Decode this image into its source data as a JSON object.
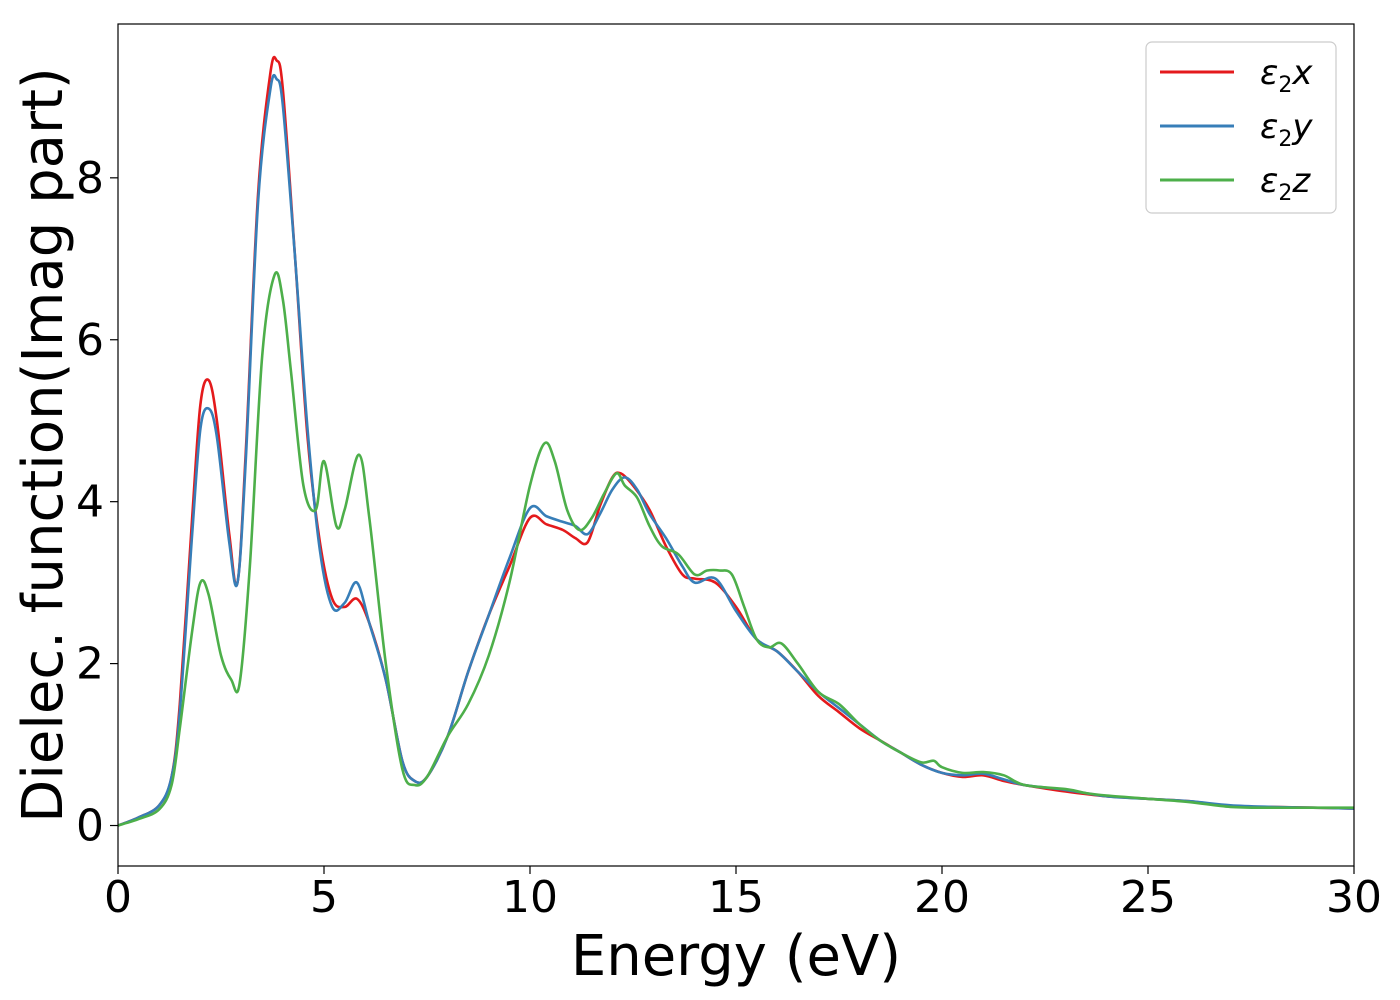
{
  "chart_data": {
    "type": "line",
    "title": "",
    "xlabel": "Energy (eV)",
    "ylabel": "Dielec. function(Imag part)",
    "xlim": [
      0,
      30
    ],
    "ylim": [
      -0.5,
      9.9
    ],
    "xticks": [
      0,
      5,
      10,
      15,
      20,
      25,
      30
    ],
    "yticks": [
      0,
      2,
      4,
      6,
      8
    ],
    "xtick_labels": [
      "0",
      "5",
      "10",
      "15",
      "20",
      "25",
      "30"
    ],
    "ytick_labels": [
      "0",
      "2",
      "4",
      "6",
      "8"
    ],
    "grid": false,
    "legend_position": "top-right",
    "series": [
      {
        "name": "ε₂x",
        "legend_main": "ε",
        "legend_sub": "2",
        "legend_var": "x",
        "color": "#e41a1c",
        "x": [
          0,
          0.5,
          1.0,
          1.3,
          1.5,
          1.8,
          2.0,
          2.2,
          2.4,
          2.7,
          2.9,
          3.1,
          3.4,
          3.7,
          3.85,
          4.0,
          4.3,
          4.6,
          4.9,
          5.2,
          5.5,
          5.8,
          6.1,
          6.5,
          6.9,
          7.2,
          7.5,
          8.0,
          8.5,
          9.0,
          9.5,
          10.0,
          10.4,
          10.8,
          11.1,
          11.4,
          11.7,
          12.0,
          12.2,
          12.5,
          12.9,
          13.3,
          13.7,
          14.0,
          14.5,
          15.0,
          15.5,
          16.0,
          16.5,
          17.0,
          17.5,
          18.0,
          18.5,
          19.0,
          19.5,
          20.0,
          20.5,
          21.0,
          21.5,
          22.0,
          23.0,
          24.0,
          25.0,
          26.0,
          27.0,
          28.0,
          29.0,
          30.0
        ],
        "y": [
          0.0,
          0.1,
          0.25,
          0.6,
          1.5,
          3.8,
          5.2,
          5.5,
          5.0,
          3.6,
          3.0,
          4.6,
          7.8,
          9.3,
          9.45,
          9.1,
          7.0,
          4.8,
          3.5,
          2.8,
          2.7,
          2.8,
          2.5,
          1.8,
          0.8,
          0.55,
          0.6,
          1.1,
          1.9,
          2.6,
          3.2,
          3.8,
          3.72,
          3.65,
          3.55,
          3.5,
          3.95,
          4.3,
          4.35,
          4.2,
          3.9,
          3.45,
          3.1,
          3.05,
          3.0,
          2.7,
          2.3,
          2.15,
          1.9,
          1.6,
          1.4,
          1.2,
          1.05,
          0.9,
          0.75,
          0.65,
          0.6,
          0.62,
          0.55,
          0.5,
          0.42,
          0.36,
          0.33,
          0.3,
          0.24,
          0.23,
          0.22,
          0.21
        ]
      },
      {
        "name": "ε₂y",
        "legend_main": "ε",
        "legend_sub": "2",
        "legend_var": "y",
        "color": "#377eb8",
        "x": [
          0,
          0.5,
          1.0,
          1.3,
          1.5,
          1.8,
          2.0,
          2.2,
          2.4,
          2.7,
          2.9,
          3.1,
          3.4,
          3.7,
          3.85,
          4.0,
          4.3,
          4.6,
          4.9,
          5.2,
          5.5,
          5.8,
          6.1,
          6.5,
          6.9,
          7.2,
          7.5,
          8.0,
          8.5,
          9.0,
          9.5,
          10.0,
          10.4,
          10.8,
          11.1,
          11.4,
          11.7,
          12.0,
          12.3,
          12.6,
          12.9,
          13.3,
          13.7,
          14.0,
          14.5,
          15.0,
          15.5,
          16.0,
          16.5,
          17.0,
          17.5,
          18.0,
          18.5,
          19.0,
          19.5,
          20.0,
          20.5,
          21.0,
          21.5,
          22.0,
          23.0,
          24.0,
          25.0,
          26.0,
          27.0,
          28.0,
          29.0,
          30.0
        ],
        "y": [
          0.0,
          0.1,
          0.25,
          0.6,
          1.4,
          3.6,
          4.9,
          5.15,
          4.8,
          3.5,
          3.0,
          4.5,
          7.7,
          9.1,
          9.22,
          8.9,
          7.0,
          4.9,
          3.4,
          2.7,
          2.75,
          3.0,
          2.5,
          1.8,
          0.8,
          0.55,
          0.6,
          1.1,
          1.9,
          2.6,
          3.3,
          3.92,
          3.82,
          3.75,
          3.7,
          3.6,
          3.85,
          4.15,
          4.3,
          4.15,
          3.85,
          3.55,
          3.2,
          3.0,
          3.05,
          2.65,
          2.3,
          2.15,
          1.9,
          1.65,
          1.45,
          1.25,
          1.05,
          0.9,
          0.75,
          0.65,
          0.62,
          0.64,
          0.57,
          0.5,
          0.44,
          0.36,
          0.33,
          0.3,
          0.25,
          0.23,
          0.22,
          0.21
        ]
      },
      {
        "name": "ε₂z",
        "legend_main": "ε",
        "legend_sub": "2",
        "legend_var": "z",
        "color": "#4daf4a",
        "x": [
          0,
          0.5,
          1.0,
          1.3,
          1.5,
          1.8,
          2.0,
          2.2,
          2.5,
          2.75,
          2.95,
          3.2,
          3.5,
          3.8,
          4.0,
          4.2,
          4.5,
          4.8,
          5.0,
          5.3,
          5.5,
          5.85,
          6.1,
          6.5,
          6.9,
          7.2,
          7.5,
          8.0,
          8.5,
          9.0,
          9.5,
          10.0,
          10.35,
          10.6,
          10.9,
          11.2,
          11.5,
          11.8,
          12.1,
          12.3,
          12.6,
          12.9,
          13.2,
          13.6,
          14.0,
          14.3,
          14.6,
          14.9,
          15.2,
          15.5,
          15.8,
          16.1,
          16.5,
          17.0,
          17.5,
          18.0,
          18.5,
          19.0,
          19.5,
          19.8,
          20.0,
          20.5,
          21.0,
          21.5,
          22.0,
          23.0,
          23.5,
          24.0,
          25.0,
          26.0,
          27.0,
          28.0,
          29.0,
          30.0
        ],
        "y": [
          0.0,
          0.08,
          0.2,
          0.5,
          1.2,
          2.4,
          3.0,
          2.85,
          2.1,
          1.8,
          1.75,
          3.2,
          5.8,
          6.8,
          6.5,
          5.6,
          4.2,
          3.9,
          4.5,
          3.7,
          3.9,
          4.58,
          3.8,
          2.0,
          0.7,
          0.5,
          0.6,
          1.1,
          1.5,
          2.1,
          3.0,
          4.2,
          4.72,
          4.5,
          3.9,
          3.65,
          3.8,
          4.1,
          4.35,
          4.2,
          4.05,
          3.7,
          3.45,
          3.35,
          3.1,
          3.15,
          3.15,
          3.1,
          2.7,
          2.3,
          2.2,
          2.25,
          2.0,
          1.65,
          1.5,
          1.25,
          1.05,
          0.9,
          0.78,
          0.8,
          0.72,
          0.65,
          0.66,
          0.62,
          0.5,
          0.45,
          0.4,
          0.37,
          0.33,
          0.29,
          0.23,
          0.22,
          0.22,
          0.22
        ]
      }
    ]
  }
}
